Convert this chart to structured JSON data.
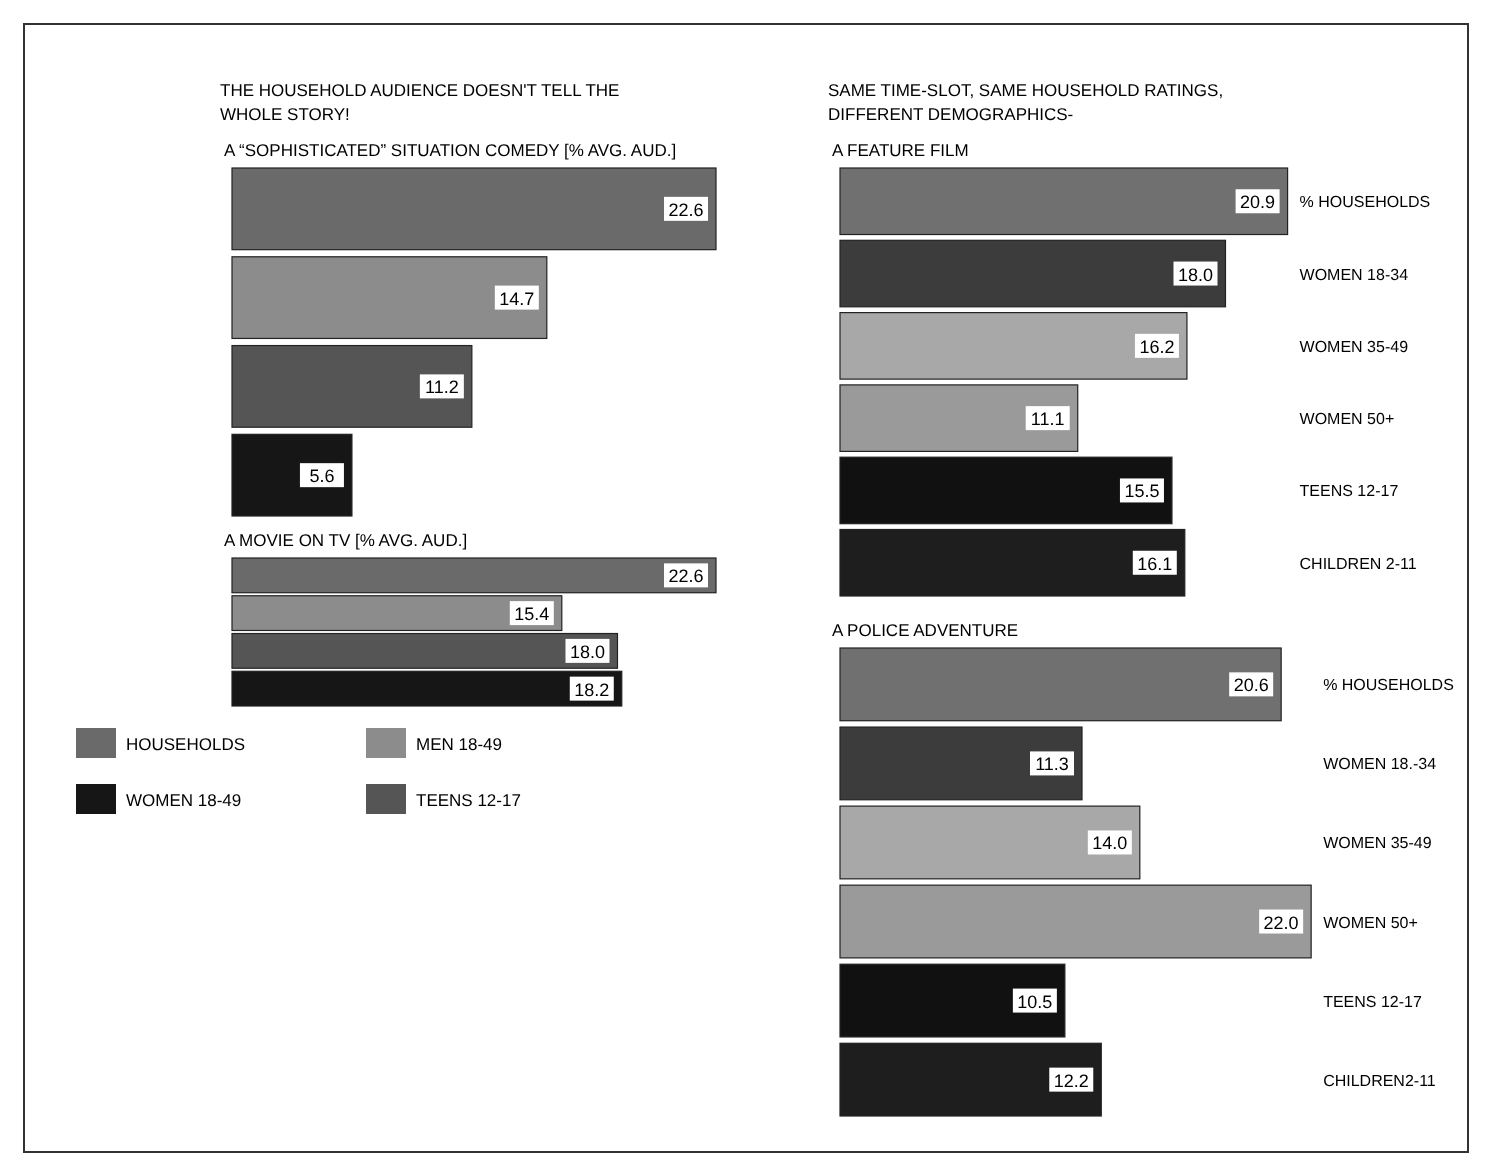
{
  "chart_data": [
    {
      "type": "bar",
      "orientation": "horizontal",
      "subtitle": "THE HOUSEHOLD AUDIENCE DOESN'T TELL THE WHOLE STORY!",
      "title": "A “SOPHISTICATED” SITUATION COMEDY [% AVG. AUD.]",
      "categories": [
        null
      ],
      "series": [
        {
          "color": "#6a6a6a",
          "values": [
            22.6
          ],
          "value_labels": [
            "22.6"
          ]
        },
        {
          "color": "#8c8c8c",
          "values": [
            14.7
          ],
          "value_labels": [
            "14.7"
          ]
        },
        {
          "color": "#555555",
          "values": [
            11.2
          ],
          "value_labels": [
            "11.2"
          ]
        },
        {
          "color": "#161616",
          "values": [
            5.6
          ],
          "value_labels": [
            "5.6"
          ]
        }
      ]
    },
    {
      "type": "bar",
      "orientation": "horizontal",
      "title": "A MOVIE ON TV [% AVG. AUD.]",
      "categories": [
        null
      ],
      "series": [
        {
          "name": "HOUSEHOLDS",
          "color": "#6a6a6a",
          "values": [
            22.6
          ],
          "value_labels": [
            "22.6"
          ]
        },
        {
          "name": "MEN 18-49",
          "color": "#8c8c8c",
          "values": [
            15.4
          ],
          "value_labels": [
            "15.4"
          ]
        },
        {
          "name": "TEENS 12-17",
          "color": "#555555",
          "values": [
            18.0
          ],
          "value_labels": [
            "18.0"
          ]
        },
        {
          "name": "WOMEN 18-49",
          "color": "#161616",
          "values": [
            18.2
          ],
          "value_labels": [
            "18.2"
          ]
        }
      ],
      "legend": "bottom"
    },
    {
      "type": "bar",
      "orientation": "horizontal",
      "subtitle": "SAME TIME-SLOT, SAME HOUSEHOLD RATINGS, DIFFERENT DEMOGRAPHICS-",
      "title": "A FEATURE FILM",
      "categories": [
        "% HOUSEHOLDS",
        "WOMEN 18-34",
        "WOMEN 35-49",
        "WOMEN 50+",
        "TEENS 12-17",
        "CHILDREN 2-11"
      ],
      "values": [
        20.9,
        18.0,
        16.2,
        11.1,
        15.5,
        16.1
      ],
      "value_labels": [
        "20.9",
        "18.0",
        "16.2",
        "11.1",
        "15.5",
        "16.1"
      ],
      "colors": [
        "#707070",
        "#3c3c3c",
        "#a8a8a8",
        "#9a9a9a",
        "#111111",
        "#1e1e1e"
      ]
    },
    {
      "type": "bar",
      "orientation": "horizontal",
      "title": "A POLICE ADVENTURE",
      "categories": [
        "% HOUSEHOLDS",
        "WOMEN 18.-34",
        "WOMEN 35-49",
        "WOMEN 50+",
        "TEENS 12-17",
        "CHILDREN2-11"
      ],
      "values": [
        20.6,
        11.3,
        14.0,
        22.0,
        10.5,
        12.2
      ],
      "value_labels": [
        "20.6",
        "11.3",
        "14.0",
        "22.0",
        "10.5",
        "12.2"
      ],
      "colors": [
        "#707070",
        "#3c3c3c",
        "#a8a8a8",
        "#9a9a9a",
        "#111111",
        "#1e1e1e"
      ]
    }
  ]
}
